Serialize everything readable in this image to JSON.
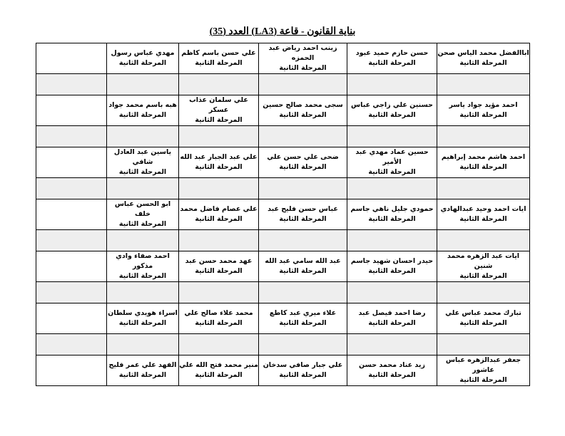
{
  "title": "بناية القانون - قاعة (LA3) العدد (35)",
  "stage_label": "المرحلة الثانية",
  "rows": [
    [
      "اباالفضل محمد الياس صحن",
      "حسن حازم حميد عبود",
      "زينب احمد رياض عبد الحمزه",
      "علي حسن باسم كاظم",
      "مهدي عباس رسول"
    ],
    [
      "احمد مؤيد جواد ياسر",
      "حسنين علي زاجي عباس",
      "سجى محمد صالح حسين",
      "علي سلمان عذاب عسكر",
      "هبه باسم محمد جواد"
    ],
    [
      "احمد هاشم محمد إبراهيم",
      "حسين عماد مهدي عبد الأمير",
      "ضحى علي حسن علي",
      "علي عبد الجبار عبد الله",
      "ياسين عبد العادل شافي"
    ],
    [
      "ايات احمد وحيد عبدالهادي",
      "حمودي جليل ناهي جاسم",
      "عباس حسن فليح عبد",
      "علي عصام فاضل محمد",
      "ابو الحسن عباس خلف"
    ],
    [
      "ايات عبد الزهره محمد شنين",
      "حيدر احسان شهيد جاسم",
      "عبد الله سامي عبد الله",
      "عهد محمد حسن عبد",
      "احمد صفاء وادي مذكور"
    ],
    [
      "تبارك محمد عباس علي",
      "رضا احمد فيصل عبد",
      "علاء ميري عبد كاطع",
      "محمد علاء صالح علي",
      "اسراء هويدي سلطان"
    ],
    [
      "جعفر عبدالزهره عباس عاشور",
      "زيد عناد محمد حسن",
      "علي جبار صافي سدخان",
      "منير محمد فتح الله علي",
      "الفهد علي عمر فليح"
    ]
  ]
}
